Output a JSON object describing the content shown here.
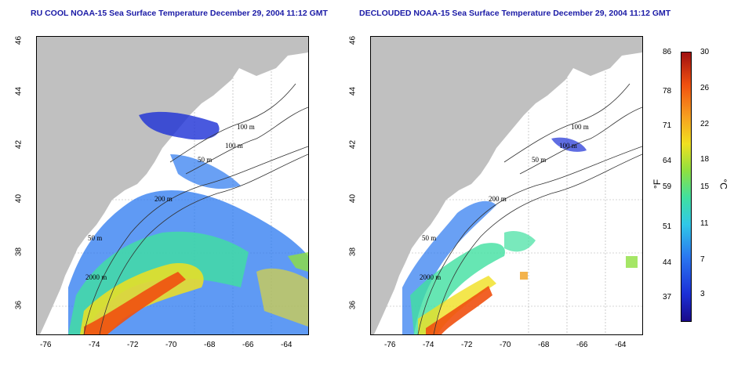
{
  "titles": {
    "left": "RU COOL NOAA-15 Sea Surface Temperature December 29, 2004 11:12 GMT",
    "right": "DECLOUDED NOAA-15 Sea Surface Temperature December 29, 2004 11:12 GMT"
  },
  "axes": {
    "lon_ticks": [
      "-76",
      "-74",
      "-72",
      "-70",
      "-68",
      "-66",
      "-64"
    ],
    "lat_ticks": [
      "46",
      "44",
      "42",
      "40",
      "38",
      "36"
    ]
  },
  "contour_labels": [
    "100 m",
    "100 m",
    "50 m",
    "200 m",
    "50 m",
    "2000 m"
  ],
  "colorbar": {
    "fahrenheit": [
      "86",
      "78",
      "71",
      "64",
      "59",
      "51",
      "44",
      "37"
    ],
    "celsius": [
      "30",
      "26",
      "22",
      "18",
      "15",
      "11",
      "7",
      "3"
    ],
    "unit_f": "°F",
    "unit_c": "°C"
  },
  "colors": {
    "title": "#1a1aa6",
    "land": "#c0c0c0",
    "ocean": "#ffffff"
  }
}
